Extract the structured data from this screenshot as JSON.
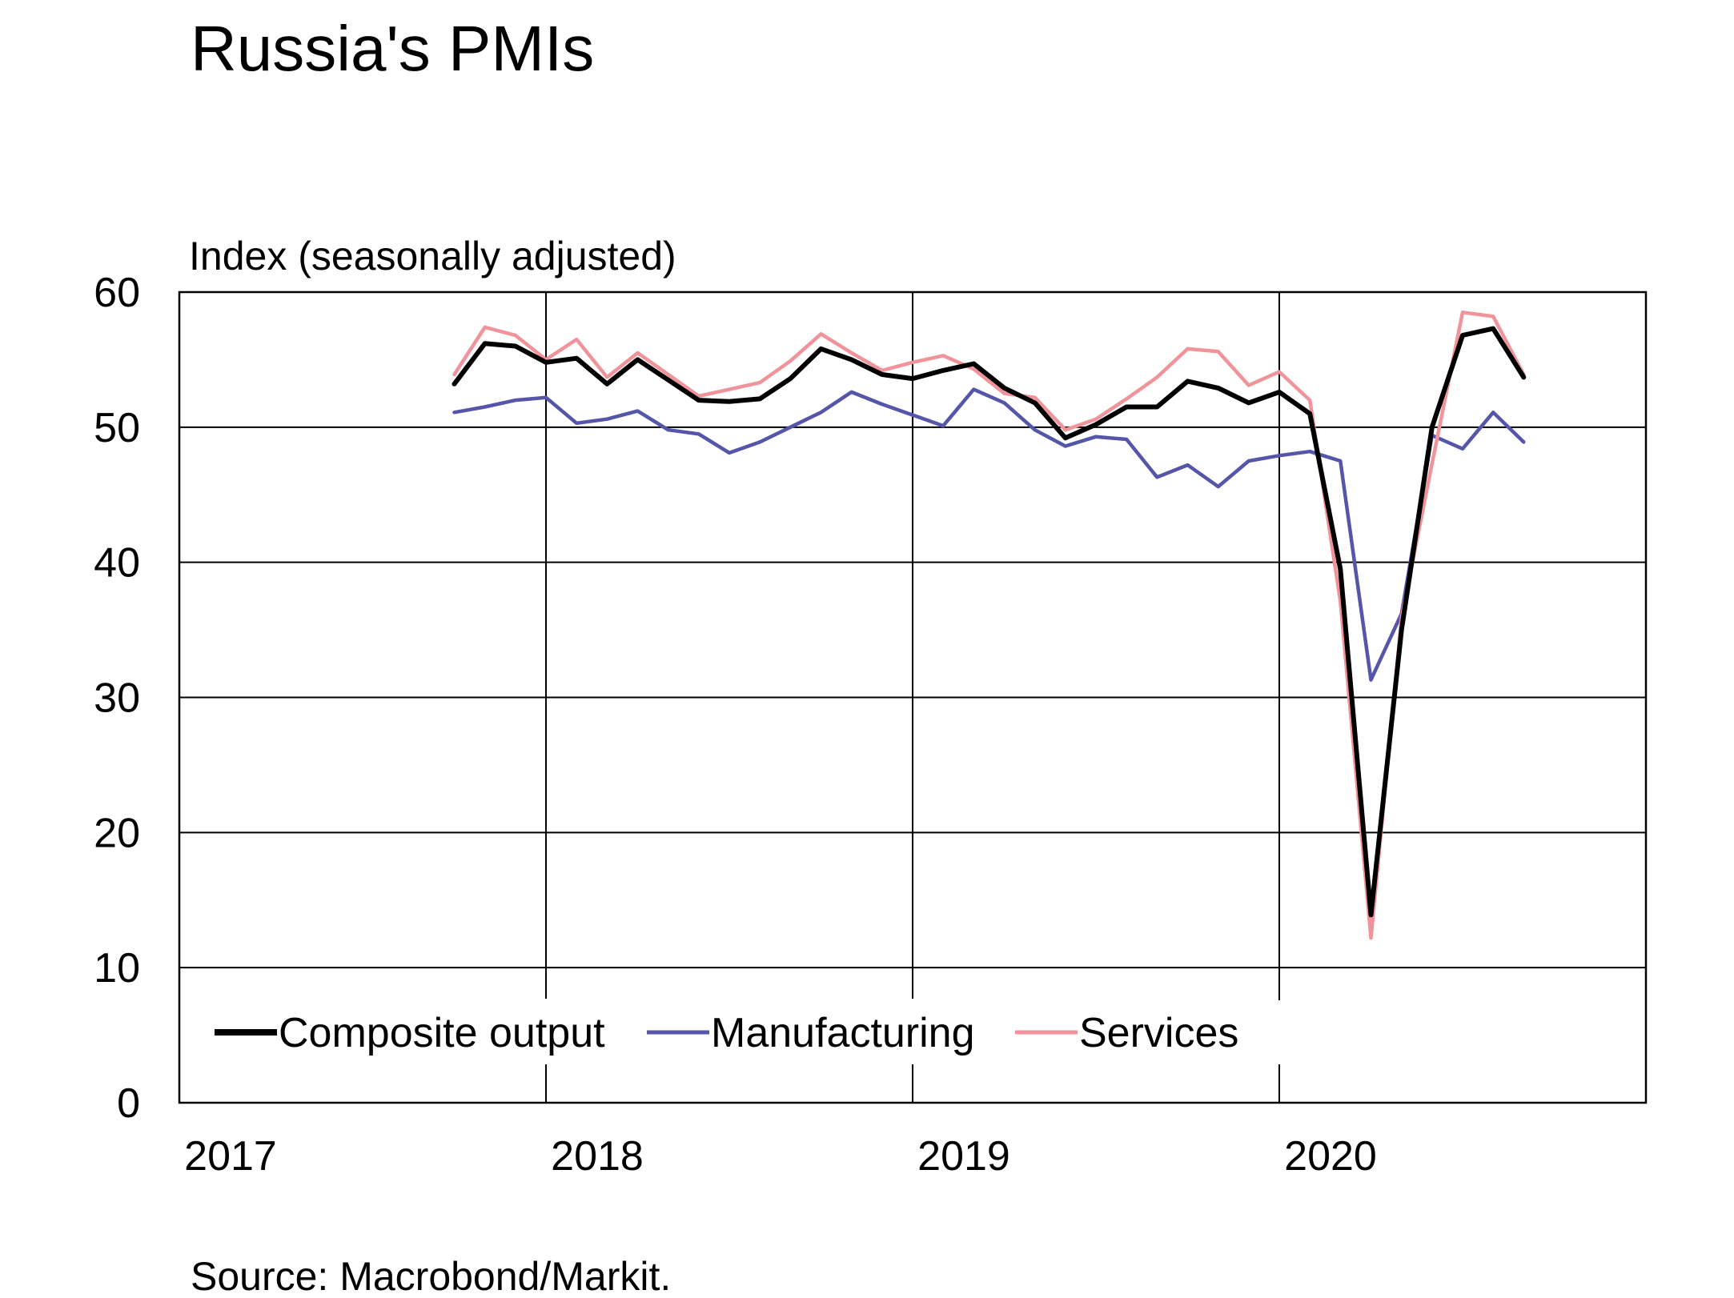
{
  "chart_data": {
    "type": "line",
    "title": "Russia's PMIs",
    "ylabel": "Index (seasonally adjusted)",
    "xlabel": "",
    "source": "Source: Macrobond/Markit.",
    "ylim": [
      0,
      60
    ],
    "y_ticks": [
      "0",
      "10",
      "20",
      "30",
      "40",
      "50",
      "60"
    ],
    "x_ticks": [
      "2017",
      "2018",
      "2019",
      "2020"
    ],
    "grid": true,
    "legend_position": "bottom-left",
    "x": [
      "2017-10",
      "2017-11",
      "2017-12",
      "2018-01",
      "2018-02",
      "2018-03",
      "2018-04",
      "2018-05",
      "2018-06",
      "2018-07",
      "2018-08",
      "2018-09",
      "2018-10",
      "2018-11",
      "2018-12",
      "2019-01",
      "2019-02",
      "2019-03",
      "2019-04",
      "2019-05",
      "2019-06",
      "2019-07",
      "2019-08",
      "2019-09",
      "2019-10",
      "2019-11",
      "2019-12",
      "2020-01",
      "2020-02",
      "2020-03",
      "2020-04",
      "2020-05",
      "2020-06",
      "2020-07",
      "2020-08",
      "2020-09",
      "2020-10"
    ],
    "series": [
      {
        "name": "Composite output",
        "color": "#000000",
        "values": [
          53.2,
          56.2,
          56.0,
          54.8,
          55.1,
          53.2,
          55.0,
          53.5,
          52.0,
          51.9,
          52.1,
          53.6,
          55.8,
          55.0,
          53.9,
          53.6,
          54.2,
          54.7,
          52.9,
          51.8,
          49.2,
          50.2,
          51.5,
          51.5,
          53.4,
          52.9,
          51.8,
          52.6,
          51.0,
          39.5,
          13.9,
          35.0,
          50.0,
          56.8,
          57.3,
          53.7,
          null
        ],
        "pad_start": 0
      },
      {
        "name": "Manufacturing",
        "color": "#5555aa",
        "values": [
          51.1,
          51.5,
          52.0,
          52.2,
          50.3,
          50.6,
          51.2,
          49.8,
          49.5,
          48.1,
          48.9,
          50.0,
          51.1,
          52.6,
          51.7,
          50.9,
          50.1,
          52.8,
          51.8,
          49.8,
          48.6,
          49.3,
          49.1,
          46.3,
          47.2,
          45.6,
          47.5,
          47.9,
          48.2,
          47.5,
          31.3,
          36.2,
          49.4,
          48.4,
          51.1,
          48.9,
          null
        ]
      },
      {
        "name": "Services",
        "color": "#f0939b",
        "values": [
          53.9,
          57.4,
          56.8,
          55.0,
          56.5,
          53.7,
          55.5,
          53.9,
          52.3,
          52.8,
          53.3,
          54.9,
          56.9,
          55.5,
          54.2,
          54.8,
          55.3,
          54.3,
          52.5,
          52.2,
          49.8,
          50.6,
          52.1,
          53.7,
          55.8,
          55.6,
          53.1,
          54.1,
          52.0,
          37.1,
          12.2,
          35.9,
          47.3,
          58.5,
          58.2,
          53.9,
          null
        ]
      }
    ]
  }
}
